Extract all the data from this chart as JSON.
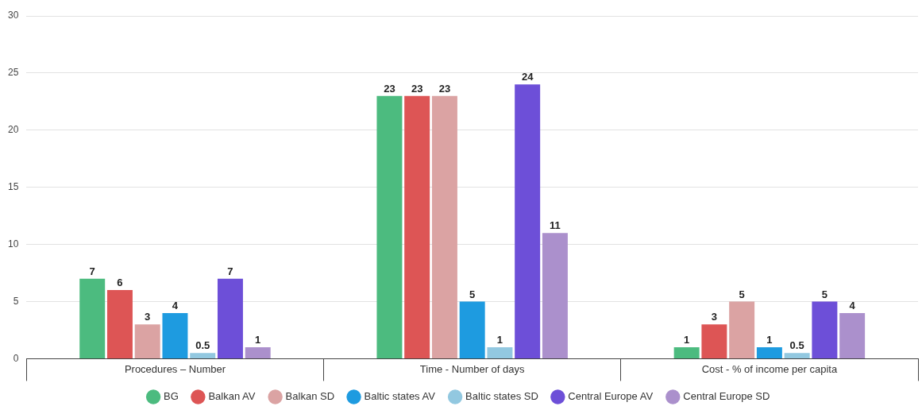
{
  "chart_data": {
    "type": "bar",
    "categories": [
      "Procedures – Number",
      "Time - Number of days",
      "Cost - % of income per capita"
    ],
    "series": [
      {
        "name": "BG",
        "color": "#4cbb7f",
        "values": [
          7,
          23,
          1
        ]
      },
      {
        "name": "Balkan AV",
        "color": "#dd5555",
        "values": [
          6,
          23,
          3
        ]
      },
      {
        "name": "Balkan SD",
        "color": "#dba3a3",
        "values": [
          3,
          23,
          5
        ]
      },
      {
        "name": "Baltic states AV",
        "color": "#1e9be0",
        "values": [
          4,
          5,
          1
        ]
      },
      {
        "name": "Baltic states SD",
        "color": "#92c8e0",
        "values": [
          0.5,
          1,
          0.5
        ]
      },
      {
        "name": "Central Europe AV",
        "color": "#6d4fd8",
        "values": [
          7,
          24,
          5
        ]
      },
      {
        "name": "Central Europe SD",
        "color": "#ab90cc",
        "values": [
          1,
          11,
          4
        ]
      }
    ],
    "ylim": [
      0,
      30
    ],
    "yticks": [
      0,
      5,
      10,
      15,
      20,
      25,
      30
    ],
    "grid": "y",
    "legend": "bottom",
    "marker": "circle",
    "data_labels": true
  }
}
